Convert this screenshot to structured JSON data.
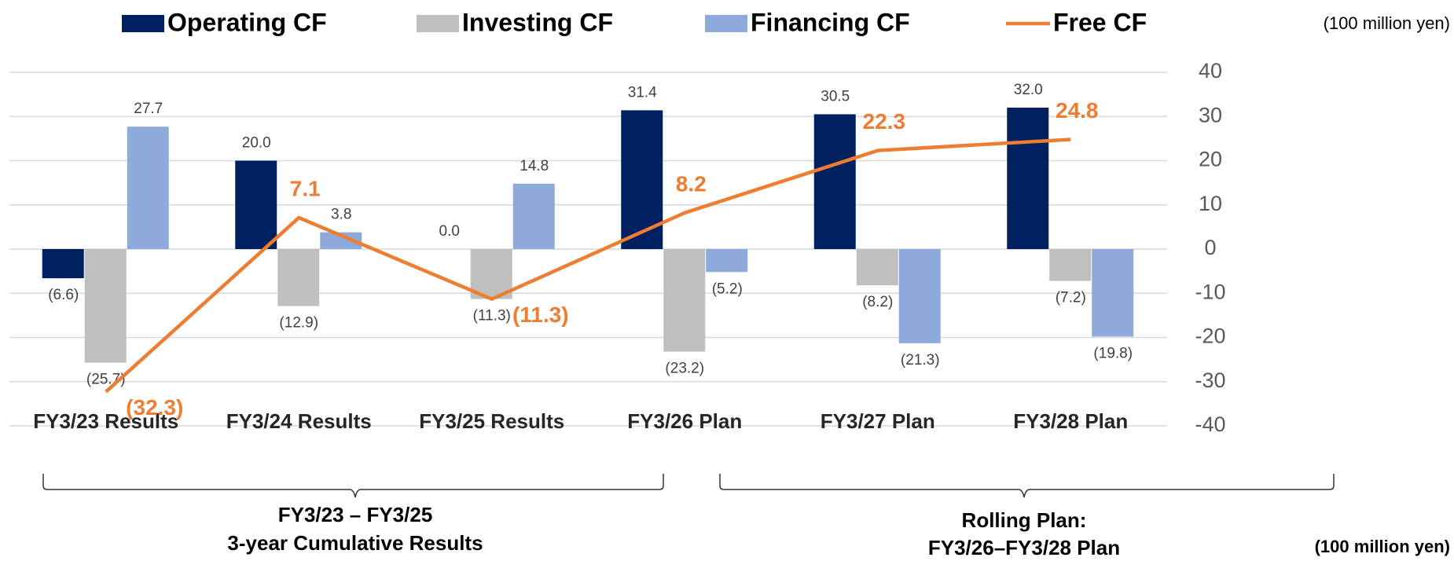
{
  "chart_data": {
    "type": "bar_line",
    "categories": [
      "FY3/23 Results",
      "FY3/24 Results",
      "FY3/25 Results",
      "FY3/26 Plan",
      "FY3/27 Plan",
      "FY3/28 Plan"
    ],
    "series": [
      {
        "name": "Operating CF",
        "color": "#002060",
        "values": [
          -6.6,
          20.0,
          0.0,
          31.4,
          30.5,
          32.0
        ],
        "value_labels": [
          "(6.6)",
          "20.0",
          "0.0",
          "31.4",
          "30.5",
          "32.0"
        ]
      },
      {
        "name": "Investing CF",
        "color": "#bfbfbf",
        "values": [
          -25.7,
          -12.9,
          -11.3,
          -23.2,
          -8.2,
          -7.2
        ],
        "value_labels": [
          "(25.7)",
          "(12.9)",
          "(11.3)",
          "(23.2)",
          "(8.2)",
          "(7.2)"
        ]
      },
      {
        "name": "Financing CF",
        "color": "#8eaadb",
        "values": [
          27.7,
          3.8,
          14.8,
          -5.2,
          -21.3,
          -19.8
        ],
        "value_labels": [
          "27.7",
          "3.8",
          "14.8",
          "(5.2)",
          "(21.3)",
          "(19.8)"
        ]
      },
      {
        "name": "Free CF",
        "type": "line",
        "color": "#ed7d31",
        "values": [
          -32.3,
          7.1,
          -11.3,
          8.2,
          22.3,
          24.8
        ],
        "value_labels": [
          "(32.3)",
          "7.1",
          "(11.3)",
          "8.2",
          "22.3",
          "24.8"
        ]
      }
    ],
    "ylim": [
      -40,
      40
    ],
    "yticks": [
      40,
      30,
      20,
      10,
      0,
      -10,
      -20,
      -30,
      -40
    ],
    "grid": true,
    "unit_label": "(100 million yen)",
    "annotations": [
      "FY3/23 – FY3/25",
      "3-year Cumulative Results",
      "Rolling Plan:",
      "FY3/26–FY3/28 Plan",
      "(100 million yen)"
    ]
  }
}
